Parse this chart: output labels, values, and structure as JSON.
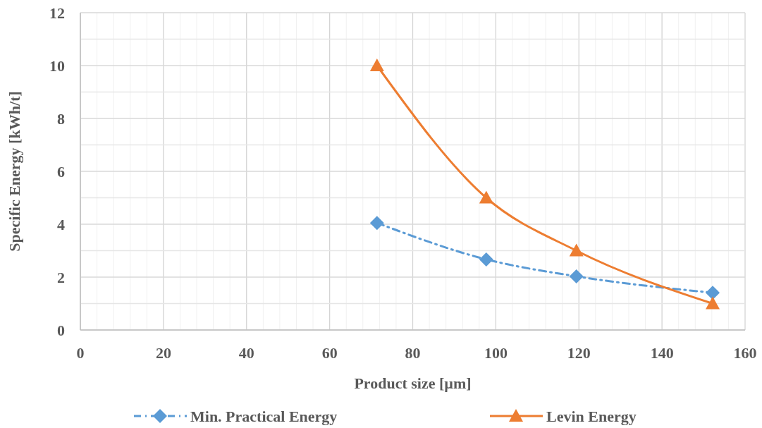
{
  "chart_data": {
    "type": "line",
    "xlabel": "Product size [µm]",
    "ylabel": "Specific Energy [kWh/t]",
    "xlim": [
      0,
      160
    ],
    "ylim": [
      0,
      12
    ],
    "xticks": [
      0,
      {
        "value": 4,
        "label": null
      },
      {
        "value": 8,
        "label": null
      },
      {
        "value": 12,
        "label": null
      },
      {
        "value": 16,
        "label": null
      },
      20,
      {
        "value": 24,
        "label": null
      },
      {
        "value": 28,
        "label": null
      },
      {
        "value": 32,
        "label": null
      },
      {
        "value": 36,
        "label": null
      },
      40,
      {
        "value": 44,
        "label": null
      },
      {
        "value": 48,
        "label": null
      },
      {
        "value": 52,
        "label": null
      },
      {
        "value": 56,
        "label": null
      },
      60,
      {
        "value": 64,
        "label": null
      },
      {
        "value": 68,
        "label": null
      },
      {
        "value": 72,
        "label": null
      },
      {
        "value": 76,
        "label": null
      },
      80,
      {
        "value": 84,
        "label": null
      },
      {
        "value": 88,
        "label": null
      },
      {
        "value": 92,
        "label": null
      },
      {
        "value": 96,
        "label": null
      },
      100,
      {
        "value": 104,
        "label": null
      },
      {
        "value": 108,
        "label": null
      },
      {
        "value": 112,
        "label": null
      },
      {
        "value": 116,
        "label": null
      },
      120,
      {
        "value": 124,
        "label": null
      },
      {
        "value": 128,
        "label": null
      },
      {
        "value": 132,
        "label": null
      },
      {
        "value": 136,
        "label": null
      },
      140,
      {
        "value": 144,
        "label": null
      },
      {
        "value": 148,
        "label": null
      },
      {
        "value": 152,
        "label": null
      },
      {
        "value": 156,
        "label": null
      },
      160
    ],
    "yticks": [
      0,
      {
        "value": 1,
        "label": null
      },
      2,
      {
        "value": 3,
        "label": null
      },
      4,
      {
        "value": 5,
        "label": null
      },
      6,
      {
        "value": 7,
        "label": null
      },
      8,
      {
        "value": 9,
        "label": null
      },
      10,
      {
        "value": 11,
        "label": null
      },
      12
    ],
    "grid": true,
    "legend": "bottom",
    "series": [
      {
        "name": "Min. Practical Energy",
        "color": "#5b9bd5",
        "marker": "diamond",
        "line_style": "dashed",
        "x": [
          71.4,
          97.7,
          119.4,
          152.2
        ],
        "values": [
          4.05,
          2.67,
          2.03,
          1.41
        ]
      },
      {
        "name": "Levin Energy",
        "color": "#ed7d31",
        "marker": "triangle",
        "line_style": "solid",
        "x": [
          71.4,
          97.7,
          119.4,
          152.2
        ],
        "values": [
          10,
          5,
          3,
          1
        ]
      }
    ]
  }
}
